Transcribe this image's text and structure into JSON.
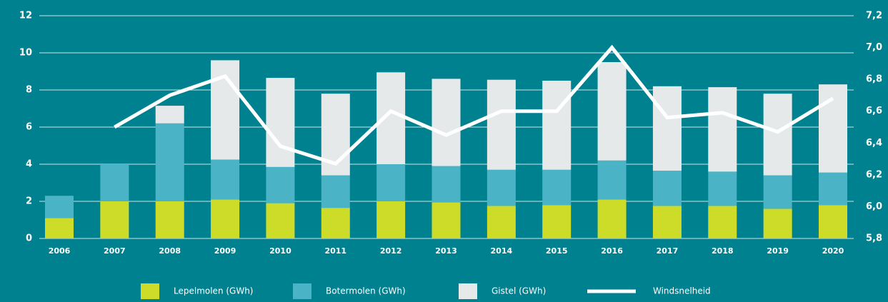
{
  "chart_data": {
    "type": "bar",
    "stacked": true,
    "categories": [
      "2006",
      "2007",
      "2008",
      "2009",
      "2010",
      "2011",
      "2012",
      "2013",
      "2014",
      "2015",
      "2016",
      "2017",
      "2018",
      "2019",
      "2020"
    ],
    "series": [
      {
        "name": "Lepelmolen (GWh)",
        "color": "#cddc29",
        "values": [
          1.1,
          2.0,
          2.0,
          2.1,
          1.9,
          1.65,
          2.0,
          1.95,
          1.75,
          1.8,
          2.1,
          1.75,
          1.75,
          1.6,
          1.8
        ]
      },
      {
        "name": "Botermolen (GWh)",
        "color": "#4ab3c6",
        "values": [
          1.2,
          2.0,
          4.2,
          2.15,
          1.95,
          1.75,
          2.0,
          1.95,
          1.95,
          1.9,
          2.1,
          1.9,
          1.85,
          1.8,
          1.75
        ]
      },
      {
        "name": "Gistel (GWh)",
        "color": "#e6e9ea",
        "values": [
          0,
          0,
          0.95,
          5.35,
          4.8,
          4.4,
          4.95,
          4.7,
          4.85,
          4.8,
          5.3,
          4.55,
          4.55,
          4.4,
          4.75
        ]
      },
      {
        "name": "Windsnelheid",
        "color": "#ffffff",
        "type": "line",
        "axis": "y2",
        "values": [
          null,
          6.5,
          6.7,
          6.82,
          6.38,
          6.27,
          6.6,
          6.45,
          6.6,
          6.6,
          7.0,
          6.56,
          6.59,
          6.47,
          6.68
        ]
      }
    ],
    "ylim": [
      0,
      12
    ],
    "yticks": [
      0,
      2,
      4,
      6,
      8,
      10,
      12
    ],
    "y2lim": [
      5.8,
      7.2
    ],
    "y2ticks": [
      {
        "value": 5.8,
        "label": "5,8"
      },
      {
        "value": 6.0,
        "label": "6,0"
      },
      {
        "value": 6.2,
        "label": "6,2"
      },
      {
        "value": 6.4,
        "label": "6,4"
      },
      {
        "value": 6.6,
        "label": "6,6"
      },
      {
        "value": 6.8,
        "label": "6,8"
      },
      {
        "value": 7.0,
        "label": "7,0"
      },
      {
        "value": 7.2,
        "label": "7,2"
      }
    ],
    "grid": true,
    "legend": "bottom"
  }
}
